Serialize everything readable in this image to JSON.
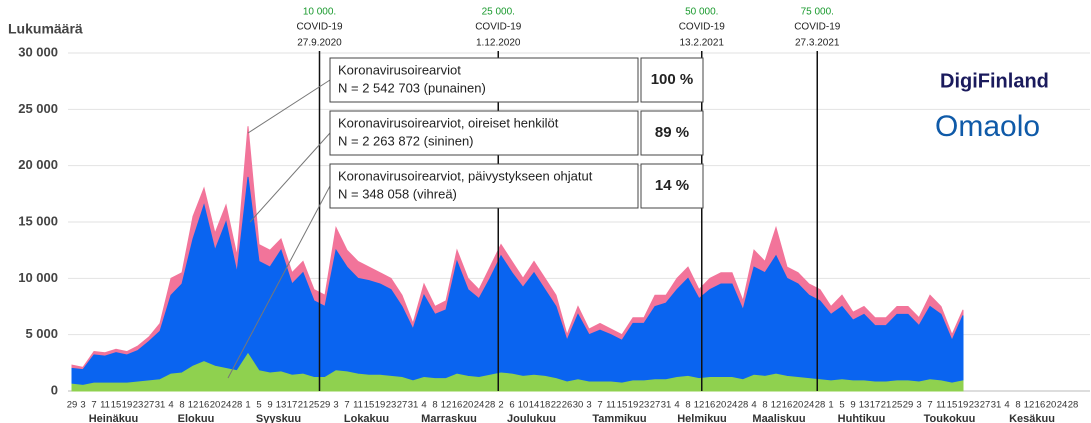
{
  "chart_data": {
    "type": "area",
    "y_label": "Lukumäärä",
    "ylim": [
      0,
      30000
    ],
    "yticks": [
      0,
      {
        "value": 5000,
        "label": "5 000"
      },
      {
        "value": 10000,
        "label": "10 000"
      },
      {
        "value": 15000,
        "label": "15 000"
      },
      {
        "value": 20000,
        "label": "20 000"
      },
      {
        "value": 25000,
        "label": "25 000"
      },
      {
        "value": 30000,
        "label": "30 000"
      }
    ],
    "grid": true,
    "months": [
      "Heinäkuu",
      "Elokuu",
      "Syyskuu",
      "Lokakuu",
      "Marraskuu",
      "Joulukuu",
      "Tammikuu",
      "Helmikuu",
      "Maaliskuu",
      "Huhtikuu",
      "Toukokuu",
      "Kesäkuu"
    ],
    "categories": [
      29,
      3,
      7,
      11,
      15,
      19,
      23,
      27,
      31,
      4,
      8,
      12,
      16,
      20,
      24,
      28,
      1,
      5,
      9,
      13,
      17,
      21,
      25,
      29,
      3,
      7,
      11,
      15,
      19,
      23,
      27,
      31,
      4,
      8,
      12,
      16,
      20,
      24,
      28,
      2,
      6,
      10,
      14,
      18,
      22,
      26,
      30,
      3,
      7,
      11,
      15,
      19,
      23,
      27,
      31,
      4,
      8,
      12,
      16,
      20,
      24,
      28,
      4,
      8,
      12,
      16,
      20,
      24,
      28,
      1,
      5,
      9,
      13,
      17,
      21,
      25,
      29,
      3,
      7,
      11,
      15,
      19,
      23,
      27,
      31,
      4,
      8,
      12,
      16,
      20,
      24,
      28
    ],
    "series": [
      {
        "name": "Koronavirusoirearviot",
        "note": "N = 2 542 703 (punainen)",
        "percent": "100 %",
        "color": "#f2749a",
        "values": [
          2300,
          2100,
          3500,
          3400,
          3700,
          3500,
          4000,
          4800,
          6000,
          10000,
          10500,
          15500,
          18000,
          14000,
          16500,
          12000,
          23500,
          13000,
          12500,
          13500,
          10500,
          11500,
          9000,
          8500,
          14500,
          12500,
          11500,
          11000,
          10500,
          10000,
          8500,
          6000,
          9500,
          7500,
          8000,
          12500,
          10000,
          9000,
          11000,
          13000,
          11500,
          10000,
          11500,
          10000,
          8500,
          5000,
          7500,
          5500,
          6000,
          5500,
          5000,
          6500,
          6500,
          8500,
          8500,
          10000,
          11000,
          9000,
          10000,
          10500,
          10500,
          8000,
          12500,
          11500,
          14500,
          11000,
          10500,
          9500,
          9000,
          7500,
          8500,
          7000,
          7500,
          6500,
          6500,
          7500,
          7500,
          6500,
          8500,
          7500,
          5000,
          7200,
          null,
          null,
          null,
          null,
          null,
          null,
          null,
          null,
          null,
          null
        ]
      },
      {
        "name": "Koronavirusoirearviot, oireiset henkilöt",
        "note": "N = 2 263 872 (sininen)",
        "percent": "89 %",
        "color": "#0a64f0",
        "values": [
          2000,
          1900,
          3200,
          3100,
          3400,
          3200,
          3600,
          4400,
          5300,
          8500,
          9500,
          13500,
          16500,
          12500,
          15000,
          10500,
          19000,
          11500,
          11000,
          12500,
          9500,
          10500,
          8000,
          7500,
          12500,
          11000,
          10000,
          9800,
          9500,
          9000,
          7500,
          5500,
          8500,
          6800,
          7200,
          11500,
          9000,
          8200,
          10000,
          12000,
          10500,
          9200,
          10500,
          9000,
          7500,
          4500,
          6800,
          5000,
          5400,
          5000,
          4500,
          6000,
          6000,
          7500,
          7800,
          9000,
          10000,
          8200,
          9000,
          9500,
          9500,
          7200,
          11000,
          10500,
          12000,
          10000,
          9500,
          8500,
          8000,
          6800,
          7500,
          6300,
          6800,
          5800,
          5800,
          6800,
          6800,
          5800,
          7500,
          6800,
          4500,
          6700,
          null,
          null,
          null,
          null,
          null,
          null,
          null,
          null,
          null,
          null
        ]
      },
      {
        "name": "Koronavirusoirearviot, päivystykseen ohjatut",
        "note": "N = 348 058 (vihreä)",
        "percent": "14 %",
        "color": "#8fd14f",
        "values": [
          600,
          500,
          700,
          700,
          700,
          700,
          800,
          900,
          1000,
          1500,
          1600,
          2200,
          2600,
          2200,
          2000,
          1800,
          3300,
          1800,
          1600,
          1700,
          1400,
          1500,
          1200,
          1200,
          1800,
          1700,
          1500,
          1400,
          1400,
          1300,
          1200,
          900,
          1200,
          1100,
          1100,
          1500,
          1300,
          1200,
          1400,
          1600,
          1500,
          1300,
          1400,
          1300,
          1100,
          800,
          1000,
          800,
          800,
          800,
          700,
          900,
          900,
          1000,
          1000,
          1200,
          1300,
          1100,
          1200,
          1200,
          1200,
          1000,
          1400,
          1300,
          1500,
          1300,
          1200,
          1100,
          1000,
          900,
          1000,
          900,
          900,
          800,
          800,
          900,
          900,
          800,
          1000,
          900,
          700,
          900,
          null,
          null,
          null,
          null,
          null,
          null,
          null,
          null,
          null,
          null
        ]
      }
    ],
    "annotations": [
      {
        "count": "10 000.",
        "label": "COVID-19",
        "date": "27.9.2020"
      },
      {
        "count": "25 000.",
        "label": "COVID-19",
        "date": "1.12.2020"
      },
      {
        "count": "50 000.",
        "label": "COVID-19",
        "date": "13.2.2021"
      },
      {
        "count": "75 000.",
        "label": "COVID-19",
        "date": "27.3.2021"
      }
    ],
    "logos": [
      "DigiFinland",
      "Omaolo"
    ]
  }
}
